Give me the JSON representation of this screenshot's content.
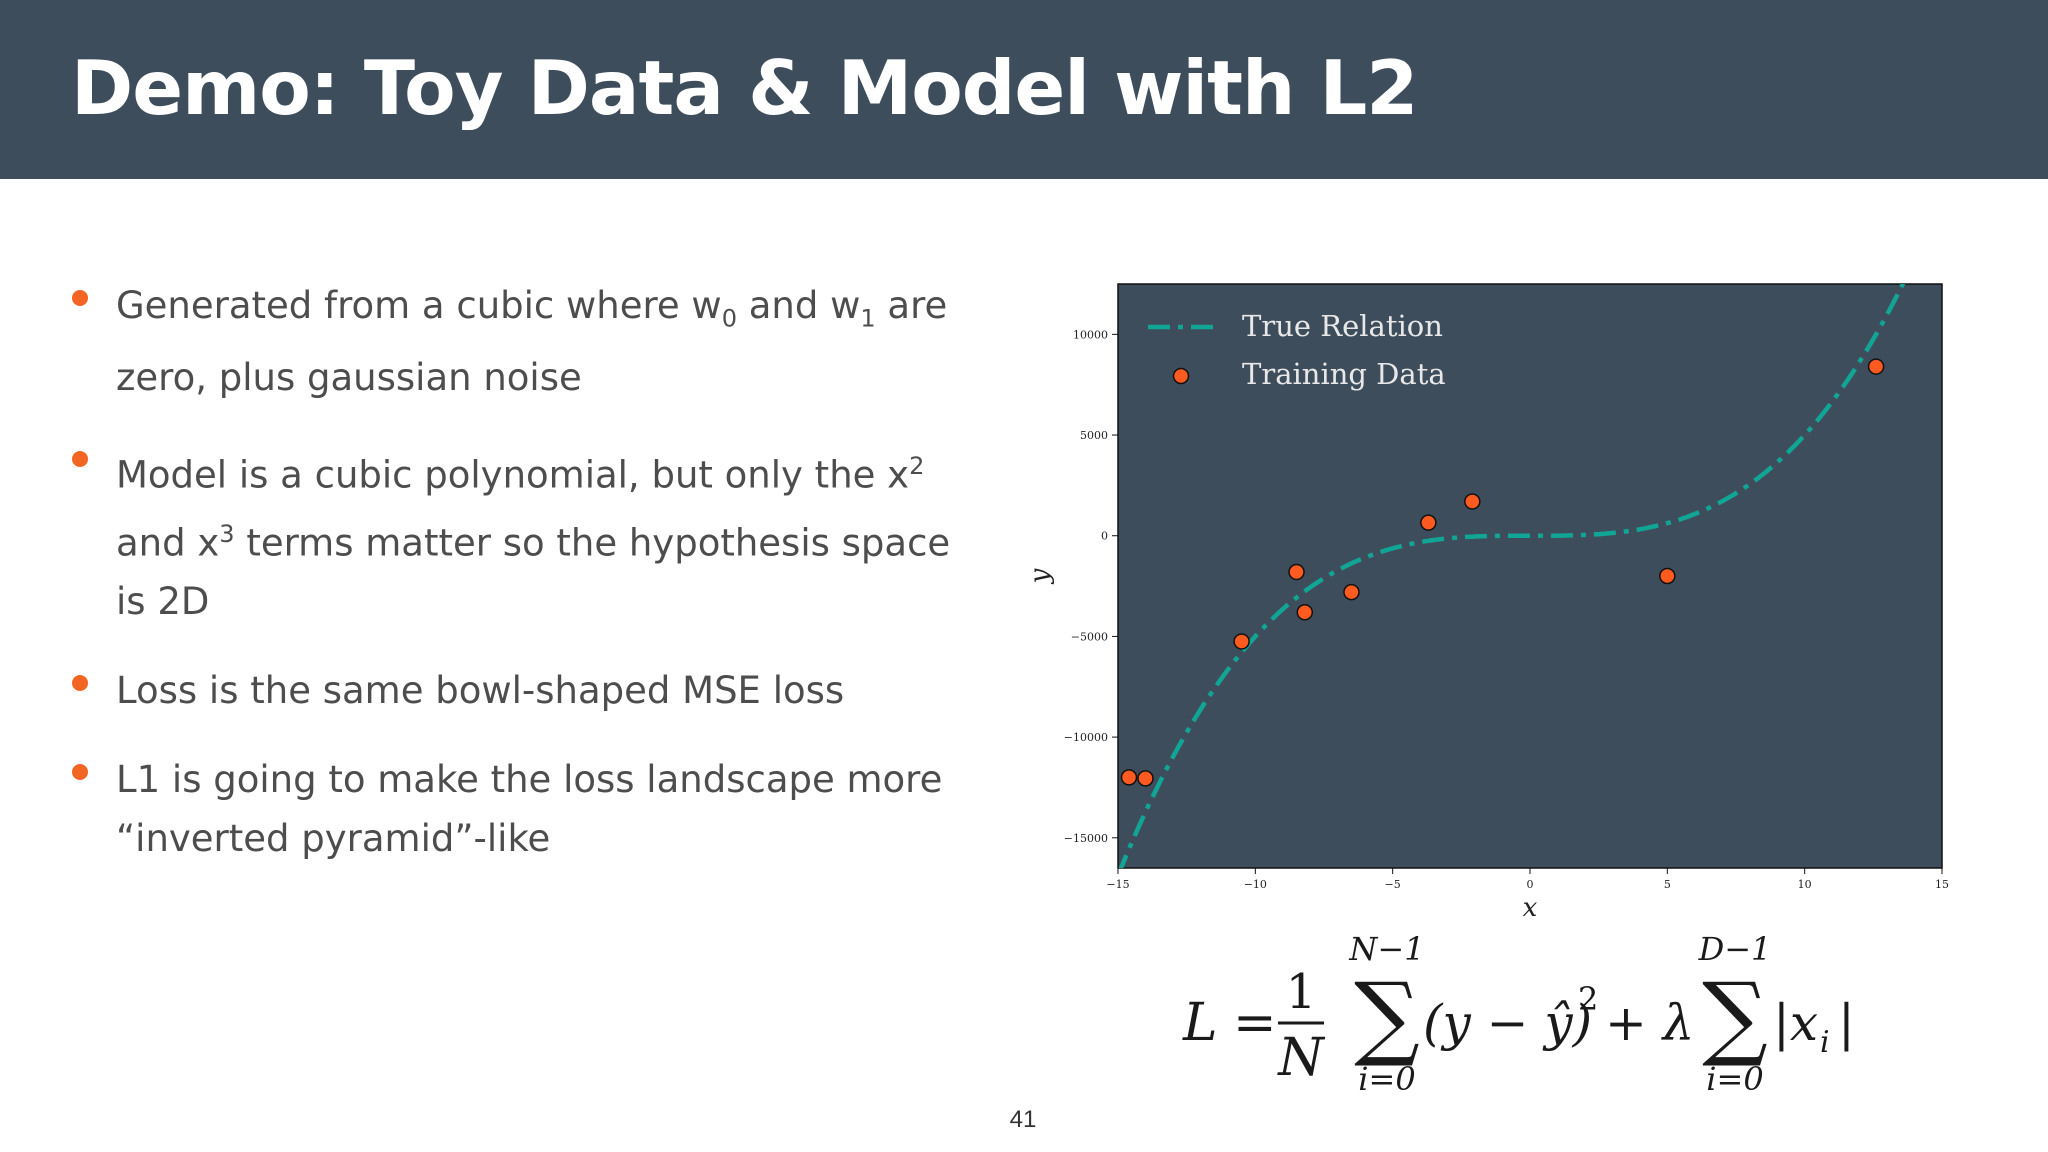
{
  "slide": {
    "title": "Demo: Toy Data & Model with L2",
    "page_number": "41",
    "colors": {
      "header": "#3e4d5c",
      "accent": "#f26522",
      "plot_background": "#3e4d5c",
      "curve": "#11a596"
    }
  },
  "bullets": [
    {
      "p1": "Generated from a cubic where w",
      "sub1": "0",
      "p2": " and w",
      "sub2": "1",
      "p3": " are zero, plus gaussian noise"
    },
    {
      "p1": "Model is a cubic polynomial, but only the x",
      "sup1": "2",
      "p2": " and x",
      "sup2": "3",
      "p3": " terms matter so the hypothesis space is 2D"
    },
    {
      "text": "Loss is the same bowl-shaped MSE loss"
    },
    {
      "text": "L1 is going to make the loss landscape more “inverted pyramid”-like"
    }
  ],
  "chart_data": {
    "type": "scatter",
    "xlabel": "x",
    "ylabel": "y",
    "xlim": [
      -15,
      15
    ],
    "ylim": [
      -16500,
      12500
    ],
    "xticks": [
      -15,
      -10,
      -5,
      0,
      5,
      10,
      15
    ],
    "yticks": [
      -15000,
      -10000,
      -5000,
      0,
      5000,
      10000
    ],
    "xtick_labels": [
      "−15",
      "−10",
      "−5",
      "0",
      "5",
      "10",
      "15"
    ],
    "ytick_labels": [
      "−15000",
      "−10000",
      "−5000",
      "0",
      "5000",
      "10000"
    ],
    "grid": false,
    "legend_position": "top-left",
    "series": [
      {
        "name": "True Relation",
        "kind": "line",
        "style": "dash-dot",
        "color": "#11a596",
        "coefficients": {
          "x3": 5,
          "x2": 0,
          "x1": 0,
          "x0": 0
        }
      },
      {
        "name": "Training Data",
        "kind": "scatter",
        "color": "#ff5a1f",
        "points": [
          [
            -14.6,
            -12000
          ],
          [
            -14.0,
            -12050
          ],
          [
            -10.5,
            -5250
          ],
          [
            -8.5,
            -1800
          ],
          [
            -8.2,
            -3800
          ],
          [
            -6.5,
            -2800
          ],
          [
            -3.7,
            650
          ],
          [
            -2.1,
            1700
          ],
          [
            5.0,
            -2000
          ],
          [
            12.6,
            8400
          ]
        ]
      }
    ]
  },
  "formula": {
    "lhs": "L",
    "eq": "=",
    "frac_num": "1",
    "frac_den": "N",
    "sum1_upper": "N−1",
    "sum1_lower": "i=0",
    "sigma": "∑",
    "sum1_body": "(y − ŷ)",
    "exp": "2",
    "plus_lambda": "+ λ",
    "sum2_upper": "D−1",
    "sum2_lower": "i=0",
    "sum2_body": "|x",
    "sum2_sub": "i",
    "sum2_close": "|"
  }
}
